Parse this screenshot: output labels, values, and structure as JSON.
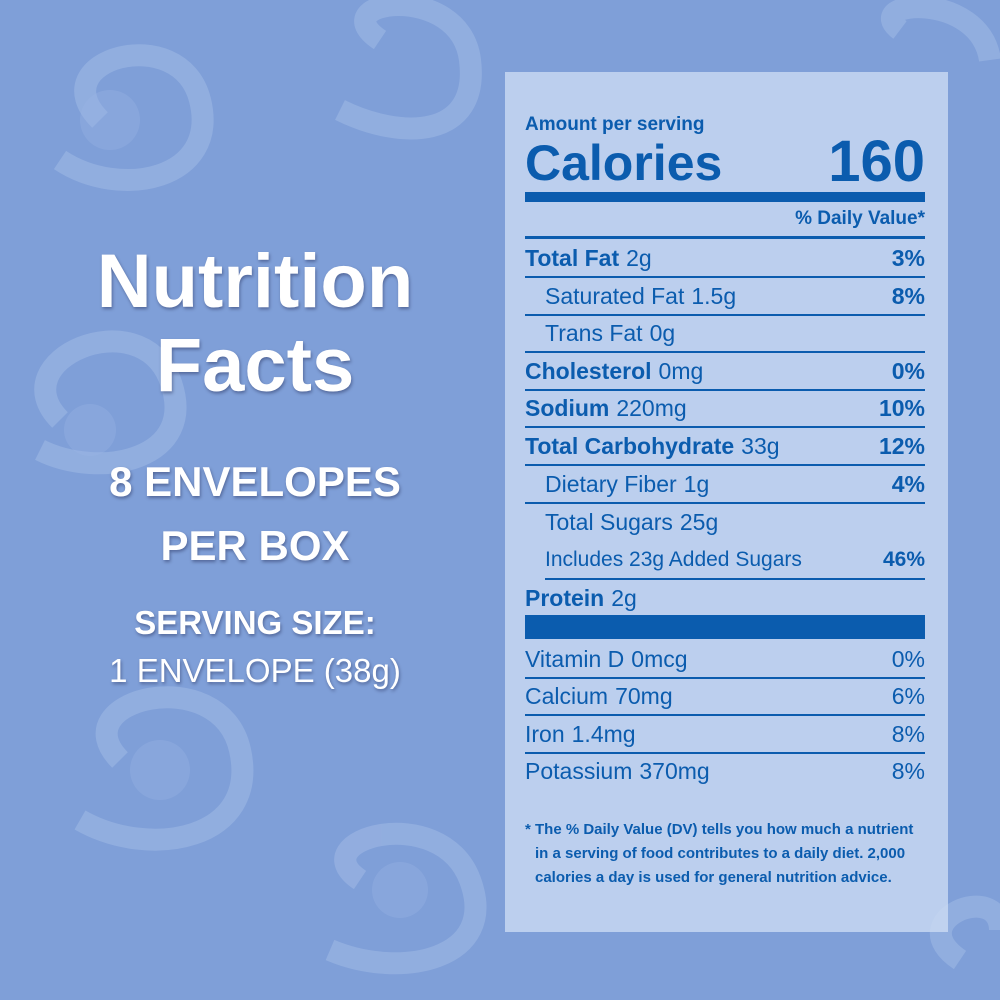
{
  "left": {
    "title_line1": "Nutrition",
    "title_line2": "Facts",
    "count_line1": "8 ENVELOPES",
    "count_line2": "PER BOX",
    "serving_label": "SERVING SIZE:",
    "serving_value": "1 ENVELOPE (38g)"
  },
  "label": {
    "amount_per_serving": "Amount per serving",
    "calories_label": "Calories",
    "calories": 160,
    "daily_value_header": "% Daily Value*",
    "nutrients": [
      {
        "name": "Total Fat",
        "amount": "2g",
        "dv": "3%"
      },
      {
        "name": "Saturated Fat",
        "amount": "1.5g",
        "dv": "8%"
      },
      {
        "name": "Trans Fat",
        "amount": "0g"
      },
      {
        "name": "Cholesterol",
        "amount": "0mg",
        "dv": "0%"
      },
      {
        "name": "Sodium",
        "amount": "220mg",
        "dv": "10%"
      },
      {
        "name": "Total Carbohydrate",
        "amount": "33g",
        "dv": "12%"
      },
      {
        "name": "Dietary Fiber",
        "amount": "1g",
        "dv": "4%"
      },
      {
        "name": "Total Sugars",
        "amount": "25g"
      },
      {
        "name": "Includes 23g Added Sugars",
        "dv": "46%"
      },
      {
        "name": "Protein",
        "amount": "2g"
      }
    ],
    "vitamins": [
      {
        "name": "Vitamin D",
        "amount": "0mcg",
        "dv": "0%"
      },
      {
        "name": "Calcium",
        "amount": "70mg",
        "dv": "6%"
      },
      {
        "name": "Iron",
        "amount": "1.4mg",
        "dv": "8%"
      },
      {
        "name": "Potassium",
        "amount": "370mg",
        "dv": "8%"
      }
    ],
    "footnote": [
      "* The % Daily Value (DV) tells you how much  a nutrient",
      "in a serving of food contributes to a daily diet. 2,000",
      "calories a day is used  for general nutrition advice."
    ]
  }
}
